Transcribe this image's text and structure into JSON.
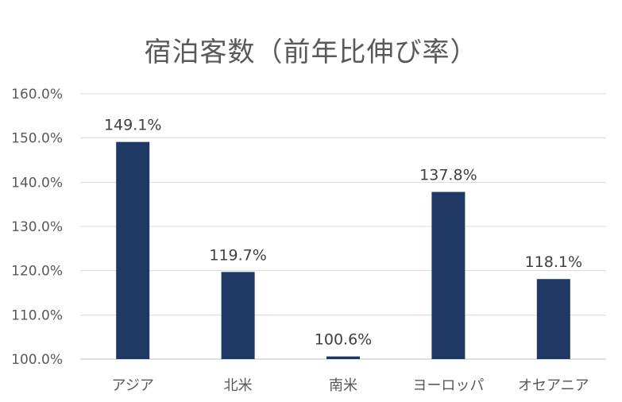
{
  "chart_data": {
    "type": "bar",
    "title": "宿泊客数（前年比伸び率）",
    "categories": [
      "アジア",
      "北米",
      "南米",
      "ヨーロッパ",
      "オセアニア"
    ],
    "values": [
      149.1,
      119.7,
      100.6,
      137.8,
      118.1
    ],
    "data_labels": [
      "149.1%",
      "119.7%",
      "100.6%",
      "137.8%",
      "118.1%"
    ],
    "ylim": [
      100,
      160
    ],
    "yticks": [
      100,
      110,
      120,
      130,
      140,
      150,
      160
    ],
    "ytick_labels": [
      "100.0%",
      "110.0%",
      "120.0%",
      "130.0%",
      "140.0%",
      "150.0%",
      "160.0%"
    ],
    "grid": true,
    "legend": "none",
    "bar_color": "#203864",
    "grid_color": "#d9d9d9"
  }
}
